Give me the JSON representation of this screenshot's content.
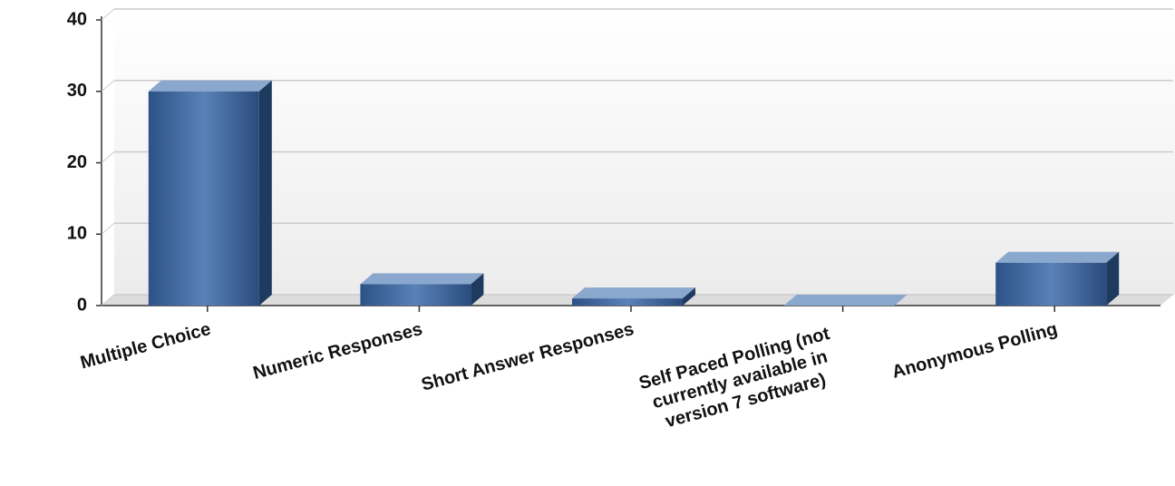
{
  "chart_data": {
    "type": "bar",
    "categories": [
      "Multiple Choice",
      "Numeric Responses",
      "Short Answer Responses",
      "Self Paced Polling (not currently available in version 7 software)",
      "Anonymous Polling"
    ],
    "values": [
      30,
      3,
      1,
      0,
      6
    ],
    "color": "#3d6aa3",
    "ylim": [
      0,
      40
    ],
    "yticks": [
      0,
      10,
      20,
      30,
      40
    ],
    "grid": true
  }
}
